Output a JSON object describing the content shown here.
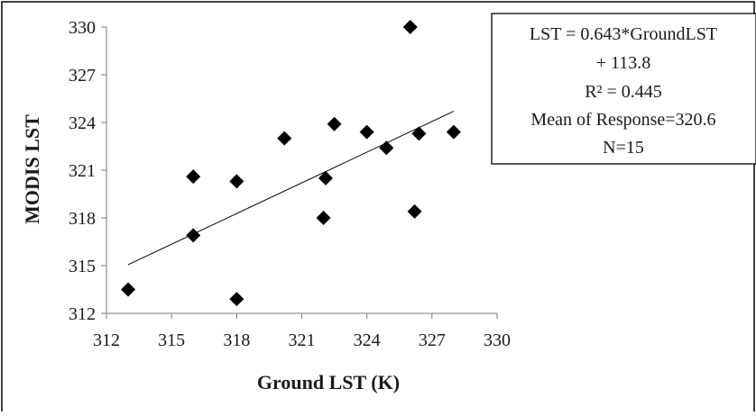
{
  "chart_data": {
    "type": "scatter",
    "title": "",
    "xlabel": "Ground LST (K)",
    "ylabel": "MODIS LST",
    "xlim": [
      312,
      330
    ],
    "ylim": [
      312,
      330
    ],
    "xticks": [
      312,
      315,
      318,
      321,
      324,
      327,
      330
    ],
    "yticks": [
      312,
      315,
      318,
      321,
      324,
      327,
      330
    ],
    "grid": false,
    "series": [
      {
        "name": "",
        "marker": "diamond",
        "color": "#000000",
        "points": [
          {
            "x": 313.0,
            "y": 313.5
          },
          {
            "x": 316.0,
            "y": 320.6
          },
          {
            "x": 316.0,
            "y": 316.9
          },
          {
            "x": 318.0,
            "y": 320.3
          },
          {
            "x": 318.0,
            "y": 312.9
          },
          {
            "x": 320.2,
            "y": 323.0
          },
          {
            "x": 322.0,
            "y": 318.0
          },
          {
            "x": 322.1,
            "y": 320.5
          },
          {
            "x": 322.5,
            "y": 323.9
          },
          {
            "x": 324.0,
            "y": 323.4
          },
          {
            "x": 324.9,
            "y": 322.4
          },
          {
            "x": 326.0,
            "y": 330.0
          },
          {
            "x": 326.2,
            "y": 318.4
          },
          {
            "x": 326.4,
            "y": 323.3
          },
          {
            "x": 328.0,
            "y": 323.4
          }
        ]
      }
    ],
    "trendline": {
      "slope": 0.643,
      "intercept": 113.8,
      "x_range": [
        313,
        328
      ],
      "color": "#000000"
    },
    "annotation_lines": [
      "LST = 0.643*GroundLST",
      "+ 113.8",
      "R² = 0.445",
      "Mean of Response=320.6",
      "N=15"
    ]
  }
}
